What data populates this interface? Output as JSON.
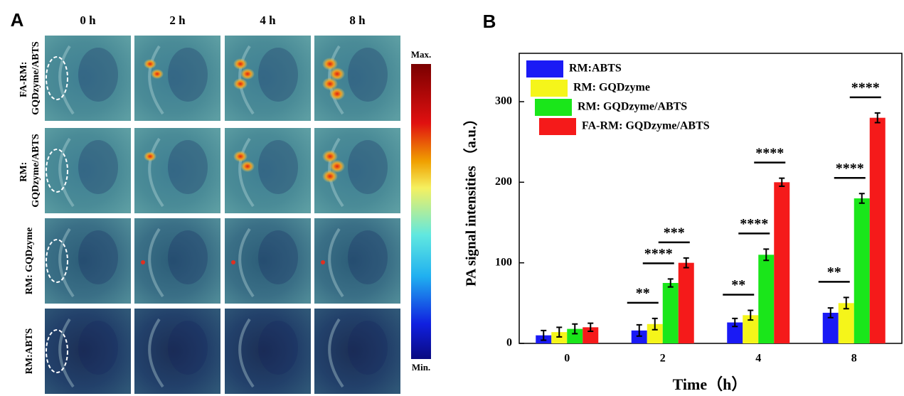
{
  "panel_a": {
    "label": "A",
    "columns": [
      "0 h",
      "2 h",
      "4 h",
      "8 h"
    ],
    "rows": [
      "FA-RM: GQDzyme/ABTS",
      "RM: GQDzyme/ABTS",
      "RM: GQDzyme",
      "RM:ABTS"
    ],
    "colorbar": {
      "max": "Max.",
      "min": "Min."
    }
  },
  "chart_data": {
    "type": "bar",
    "panel_label": "B",
    "x_label": "Time（h）",
    "y_label": "PA signal intensities （a.u.）",
    "categories": [
      "0",
      "2",
      "4",
      "8"
    ],
    "series": [
      {
        "name": "RM:ABTS",
        "color": "#1a1af5",
        "values": [
          10,
          16,
          26,
          38
        ],
        "errors": [
          6,
          7,
          5,
          6
        ]
      },
      {
        "name": "RM: GQDzyme",
        "color": "#f5f51a",
        "values": [
          14,
          24,
          35,
          50
        ],
        "errors": [
          6,
          7,
          6,
          7
        ]
      },
      {
        "name": "RM: GQDzyme/ABTS",
        "color": "#1ae61a",
        "values": [
          18,
          75,
          110,
          180
        ],
        "errors": [
          6,
          5,
          7,
          6
        ]
      },
      {
        "name": "FA-RM: GQDzyme/ABTS",
        "color": "#f51a1a",
        "values": [
          20,
          100,
          200,
          280
        ],
        "errors": [
          5,
          6,
          5,
          6
        ]
      }
    ],
    "ylim": [
      0,
      360
    ],
    "yticks": [
      0,
      100,
      200,
      300
    ],
    "legend": "upper left",
    "significance": [
      {
        "category": "2",
        "between": [
          "RM:ABTS",
          "RM: GQDzyme"
        ],
        "text": "**"
      },
      {
        "category": "2",
        "between": [
          "RM: GQDzyme",
          "RM: GQDzyme/ABTS"
        ],
        "text": "****"
      },
      {
        "category": "2",
        "between": [
          "RM: GQDzyme/ABTS",
          "FA-RM: GQDzyme/ABTS"
        ],
        "text": "***"
      },
      {
        "category": "4",
        "between": [
          "RM:ABTS",
          "RM: GQDzyme"
        ],
        "text": "**"
      },
      {
        "category": "4",
        "between": [
          "RM: GQDzyme",
          "RM: GQDzyme/ABTS"
        ],
        "text": "****"
      },
      {
        "category": "4",
        "between": [
          "RM: GQDzyme/ABTS",
          "FA-RM: GQDzyme/ABTS"
        ],
        "text": "****"
      },
      {
        "category": "8",
        "between": [
          "RM:ABTS",
          "RM: GQDzyme"
        ],
        "text": "**"
      },
      {
        "category": "8",
        "between": [
          "RM: GQDzyme",
          "RM: GQDzyme/ABTS"
        ],
        "text": "****"
      },
      {
        "category": "8",
        "between": [
          "RM: GQDzyme/ABTS",
          "FA-RM: GQDzyme/ABTS"
        ],
        "text": "****"
      }
    ]
  }
}
